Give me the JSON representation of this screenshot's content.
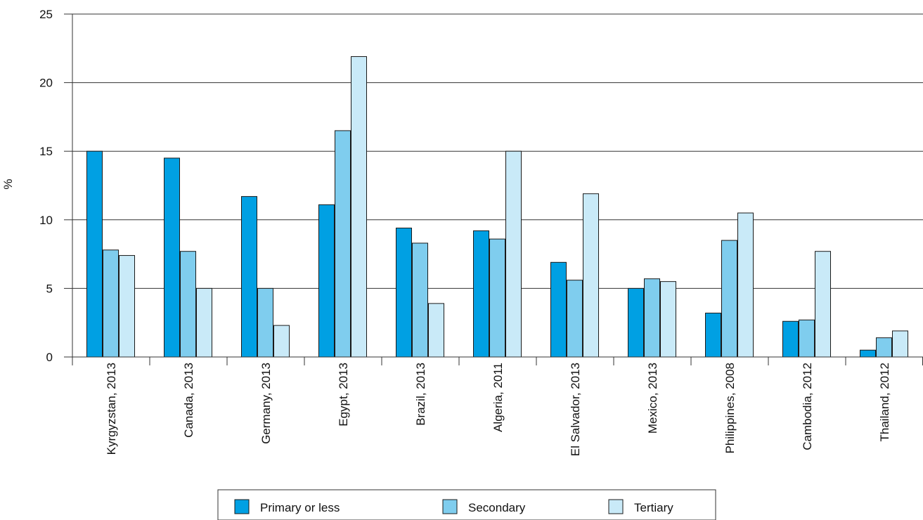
{
  "chart_data": {
    "type": "bar",
    "title": "",
    "xlabel": "",
    "ylabel": "%",
    "ylim": [
      0,
      25
    ],
    "yticks": [
      0,
      5,
      10,
      15,
      20,
      25
    ],
    "grid": true,
    "legend_position": "bottom",
    "categories": [
      "Kyrgyzstan, 2013",
      "Canada, 2013",
      "Germany, 2013",
      "Egypt, 2013",
      "Brazil, 2013",
      "Algeria, 2011",
      "El Salvador, 2013",
      "Mexico, 2013",
      "Philippines, 2008",
      "Cambodia, 2012",
      "Thailand, 2012"
    ],
    "series": [
      {
        "name": "Primary or less",
        "color": "#00a0e3",
        "values": [
          15.0,
          14.5,
          11.7,
          11.1,
          9.4,
          9.2,
          6.9,
          5.0,
          3.2,
          2.6,
          0.5
        ]
      },
      {
        "name": "Secondary",
        "color": "#7fcdee",
        "values": [
          7.8,
          7.7,
          5.0,
          16.5,
          8.3,
          8.6,
          5.6,
          5.7,
          8.5,
          2.7,
          1.4
        ]
      },
      {
        "name": "Tertiary",
        "color": "#c9eaf8",
        "values": [
          7.4,
          5.0,
          2.3,
          21.9,
          3.9,
          15.0,
          11.9,
          5.5,
          10.5,
          7.7,
          1.9
        ]
      }
    ]
  }
}
